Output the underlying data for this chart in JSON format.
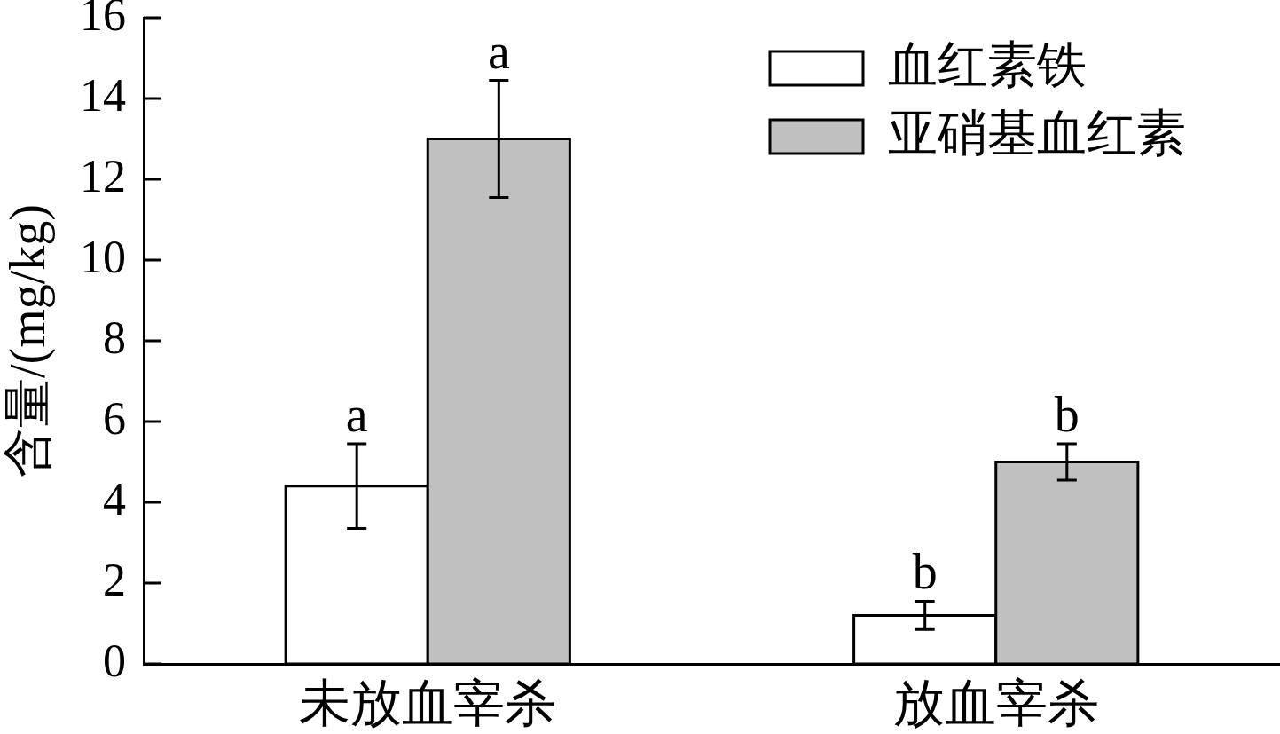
{
  "chart_data": {
    "type": "bar",
    "ylabel": "含量/(mg/kg)",
    "categories": [
      "未放血宰杀",
      "放血宰杀"
    ],
    "series": [
      {
        "name": "血红素铁",
        "color": "#ffffff",
        "values": [
          4.4,
          1.2
        ],
        "errors": [
          1.05,
          0.35
        ]
      },
      {
        "name": "亚硝基血红素",
        "color": "#c0c0c0",
        "values": [
          13.0,
          5.0
        ],
        "errors": [
          1.45,
          0.45
        ]
      }
    ],
    "ylim": [
      0,
      16
    ],
    "yticks": [
      0,
      2,
      4,
      6,
      8,
      10,
      12,
      14,
      16
    ],
    "legend": "top right",
    "annotations": [
      "a",
      "a",
      "b",
      "b"
    ]
  }
}
